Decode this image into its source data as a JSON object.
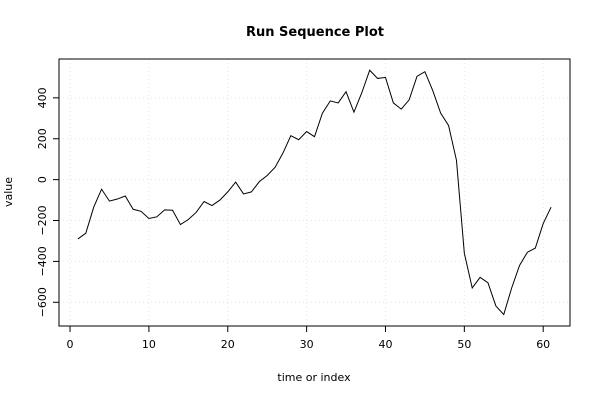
{
  "chart_data": {
    "type": "line",
    "title": "Run Sequence Plot",
    "xlabel": "time or index",
    "ylabel": "value",
    "xlim": [
      -1.4,
      63.4
    ],
    "ylim": [
      -716,
      590
    ],
    "x_ticks": [
      0,
      10,
      20,
      30,
      40,
      50,
      60
    ],
    "y_ticks": [
      -600,
      -400,
      -200,
      0,
      200,
      400
    ],
    "x_tick_labels": [
      "0",
      "10",
      "20",
      "30",
      "40",
      "50",
      "60"
    ],
    "y_tick_labels": [
      "−600",
      "−400",
      "−200",
      "0",
      "200",
      "400"
    ],
    "grid": true,
    "colors": {
      "line": "#000000",
      "grid": "#e5e5e5",
      "frame": "#000000"
    },
    "series": [
      {
        "x": [
          1,
          2,
          3,
          4,
          5,
          6,
          7,
          8,
          9,
          10,
          11,
          12,
          13,
          14,
          15,
          16,
          17,
          18,
          19,
          20,
          21,
          22,
          23,
          24,
          25,
          26,
          27,
          28,
          29,
          30,
          31,
          32,
          33,
          34,
          35,
          36,
          37,
          38,
          39,
          40,
          41,
          42,
          43,
          44,
          45,
          46,
          47,
          48,
          49,
          50,
          51,
          52,
          53,
          54,
          55,
          56,
          57,
          58,
          59,
          60,
          61
        ],
        "values": [
          -290,
          -262,
          -135,
          -47,
          -105,
          -95,
          -80,
          -145,
          -155,
          -190,
          -182,
          -148,
          -150,
          -220,
          -195,
          -160,
          -107,
          -127,
          -100,
          -60,
          -12,
          -70,
          -60,
          -10,
          20,
          60,
          130,
          215,
          195,
          235,
          210,
          325,
          385,
          375,
          430,
          330,
          425,
          535,
          495,
          500,
          375,
          345,
          390,
          505,
          528,
          435,
          325,
          265,
          95,
          -360,
          -530,
          -478,
          -505,
          -618,
          -660,
          -530,
          -420,
          -355,
          -335,
          -215,
          -135
        ]
      }
    ]
  }
}
